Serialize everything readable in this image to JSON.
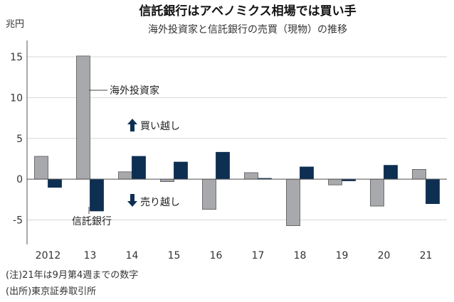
{
  "chart_data": {
    "type": "bar",
    "title": "信託銀行はアベノミクス相場では買い手",
    "subtitle": "海外投資家と信託銀行の売買（現物）の推移",
    "ylabel": "兆円",
    "ylim": [
      -8,
      17
    ],
    "yticks": [
      15,
      10,
      5,
      0,
      -5
    ],
    "categories": [
      "2012",
      "13",
      "14",
      "15",
      "16",
      "17",
      "18",
      "19",
      "20",
      "21"
    ],
    "series": [
      {
        "name": "海外投資家",
        "color": "#a7a9ac",
        "values": [
          2.8,
          15.1,
          0.9,
          -0.3,
          -3.7,
          0.8,
          -5.7,
          -0.7,
          -3.3,
          1.2
        ]
      },
      {
        "name": "信託銀行",
        "color": "#0d2f52",
        "values": [
          -1.0,
          -3.9,
          2.8,
          2.1,
          3.3,
          0.1,
          1.5,
          -0.2,
          1.7,
          -3.0
        ]
      }
    ],
    "annotations": {
      "buy": "買い越し",
      "sell": "売り越し"
    },
    "notes": [
      "(注)21年は9月第4週までの数字",
      "(出所)東京証券取引所"
    ]
  }
}
